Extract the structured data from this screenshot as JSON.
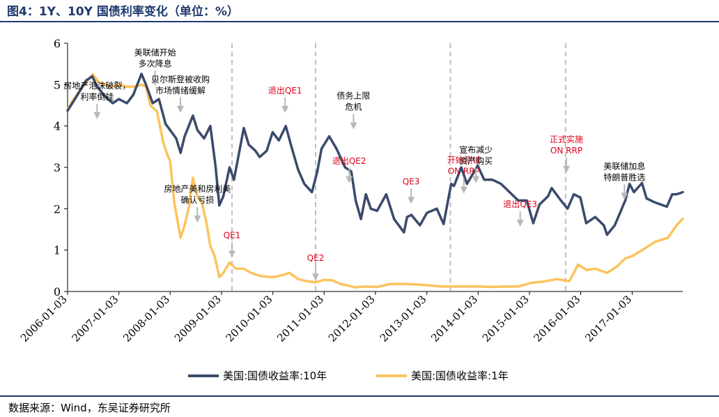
{
  "title": "图4：1Y、10Y 国债利率变化（单位：%）",
  "source": "数据来源：Wind，东吴证券研究所",
  "colors": {
    "series_10y": "#3a4a6b",
    "series_1y": "#fbc35d",
    "accent": "#1f3a6e",
    "annot_red": "#e0001b",
    "annot_black": "#000000",
    "arrow": "#b7b7b7",
    "vline": "#bfbfbf"
  },
  "chart_data": {
    "type": "line",
    "title": "",
    "xlabel": "",
    "ylabel": "",
    "ylim": [
      0,
      6
    ],
    "yticks": [
      "0",
      "1",
      "2",
      "3",
      "4",
      "5",
      "6"
    ],
    "xticks": [
      "2006-01-03",
      "2007-01-03",
      "2008-01-03",
      "2009-01-03",
      "2010-01-03",
      "2011-01-03",
      "2012-01-03",
      "2013-01-03",
      "2014-01-03",
      "2015-01-03",
      "2016-01-03",
      "2017-01-03"
    ],
    "xlim": [
      "2006-01-03",
      "2017-12-29"
    ],
    "grid": false,
    "legend": "bottom",
    "series": [
      {
        "name": "美国:国债收益率:10年",
        "points": [
          [
            "2006-01-03",
            4.37
          ],
          [
            "2006-02-15",
            4.6
          ],
          [
            "2006-04-01",
            4.85
          ],
          [
            "2006-05-15",
            5.1
          ],
          [
            "2006-06-28",
            5.2
          ],
          [
            "2006-08-01",
            4.95
          ],
          [
            "2006-10-01",
            4.7
          ],
          [
            "2006-11-20",
            4.55
          ],
          [
            "2007-01-03",
            4.65
          ],
          [
            "2007-03-01",
            4.55
          ],
          [
            "2007-04-15",
            4.75
          ],
          [
            "2007-06-13",
            5.26
          ],
          [
            "2007-07-15",
            5.0
          ],
          [
            "2007-09-01",
            4.55
          ],
          [
            "2007-10-15",
            4.65
          ],
          [
            "2007-12-01",
            4.05
          ],
          [
            "2008-01-03",
            3.9
          ],
          [
            "2008-02-15",
            3.7
          ],
          [
            "2008-03-17",
            3.35
          ],
          [
            "2008-04-15",
            3.75
          ],
          [
            "2008-06-13",
            4.25
          ],
          [
            "2008-07-15",
            3.9
          ],
          [
            "2008-09-01",
            3.7
          ],
          [
            "2008-10-15",
            4.0
          ],
          [
            "2008-11-20",
            3.05
          ],
          [
            "2008-12-18",
            2.08
          ],
          [
            "2009-01-15",
            2.3
          ],
          [
            "2009-03-01",
            3.0
          ],
          [
            "2009-04-01",
            2.7
          ],
          [
            "2009-06-10",
            3.95
          ],
          [
            "2009-07-15",
            3.55
          ],
          [
            "2009-09-01",
            3.4
          ],
          [
            "2009-10-01",
            3.25
          ],
          [
            "2009-11-20",
            3.4
          ],
          [
            "2010-01-01",
            3.85
          ],
          [
            "2010-02-15",
            3.65
          ],
          [
            "2010-04-05",
            4.0
          ],
          [
            "2010-05-15",
            3.5
          ],
          [
            "2010-07-01",
            2.95
          ],
          [
            "2010-08-15",
            2.6
          ],
          [
            "2010-10-08",
            2.4
          ],
          [
            "2010-11-15",
            2.9
          ],
          [
            "2010-12-15",
            3.45
          ],
          [
            "2011-02-08",
            3.75
          ],
          [
            "2011-04-01",
            3.45
          ],
          [
            "2011-06-01",
            3.0
          ],
          [
            "2011-07-15",
            2.9
          ],
          [
            "2011-08-15",
            2.2
          ],
          [
            "2011-09-22",
            1.75
          ],
          [
            "2011-10-27",
            2.35
          ],
          [
            "2011-12-01",
            2.0
          ],
          [
            "2012-01-15",
            1.95
          ],
          [
            "2012-03-20",
            2.35
          ],
          [
            "2012-05-15",
            1.75
          ],
          [
            "2012-07-24",
            1.43
          ],
          [
            "2012-08-15",
            1.8
          ],
          [
            "2012-09-15",
            1.85
          ],
          [
            "2012-11-15",
            1.6
          ],
          [
            "2013-01-03",
            1.9
          ],
          [
            "2013-03-15",
            2.0
          ],
          [
            "2013-05-02",
            1.63
          ],
          [
            "2013-06-25",
            2.6
          ],
          [
            "2013-07-15",
            2.55
          ],
          [
            "2013-09-05",
            3.0
          ],
          [
            "2013-10-15",
            2.6
          ],
          [
            "2013-12-31",
            3.04
          ],
          [
            "2014-02-15",
            2.7
          ],
          [
            "2014-04-15",
            2.7
          ],
          [
            "2014-06-15",
            2.6
          ],
          [
            "2014-08-15",
            2.4
          ],
          [
            "2014-10-15",
            2.2
          ],
          [
            "2014-12-15",
            2.2
          ],
          [
            "2015-01-30",
            1.65
          ],
          [
            "2015-03-15",
            2.1
          ],
          [
            "2015-05-15",
            2.3
          ],
          [
            "2015-06-10",
            2.5
          ],
          [
            "2015-08-15",
            2.2
          ],
          [
            "2015-10-01",
            2.0
          ],
          [
            "2015-11-15",
            2.35
          ],
          [
            "2015-12-31",
            2.27
          ],
          [
            "2016-02-11",
            1.65
          ],
          [
            "2016-04-15",
            1.8
          ],
          [
            "2016-06-15",
            1.6
          ],
          [
            "2016-07-08",
            1.37
          ],
          [
            "2016-09-01",
            1.6
          ],
          [
            "2016-11-15",
            2.2
          ],
          [
            "2016-12-15",
            2.6
          ],
          [
            "2017-01-15",
            2.4
          ],
          [
            "2017-03-14",
            2.62
          ],
          [
            "2017-04-15",
            2.25
          ],
          [
            "2017-06-15",
            2.15
          ],
          [
            "2017-09-07",
            2.05
          ],
          [
            "2017-10-15",
            2.35
          ],
          [
            "2017-11-15",
            2.35
          ],
          [
            "2017-12-29",
            2.4
          ]
        ]
      },
      {
        "name": "美国:国债收益率:1年",
        "points": [
          [
            "2006-01-03",
            4.4
          ],
          [
            "2006-02-15",
            4.65
          ],
          [
            "2006-04-01",
            4.85
          ],
          [
            "2006-05-15",
            5.05
          ],
          [
            "2006-07-01",
            5.25
          ],
          [
            "2006-08-15",
            5.05
          ],
          [
            "2006-10-01",
            5.0
          ],
          [
            "2006-11-15",
            4.95
          ],
          [
            "2007-01-03",
            5.0
          ],
          [
            "2007-03-01",
            4.95
          ],
          [
            "2007-05-01",
            4.95
          ],
          [
            "2007-06-15",
            5.0
          ],
          [
            "2007-07-15",
            4.95
          ],
          [
            "2007-08-15",
            4.5
          ],
          [
            "2007-10-01",
            4.35
          ],
          [
            "2007-11-15",
            3.6
          ],
          [
            "2007-12-15",
            3.3
          ],
          [
            "2008-01-03",
            3.15
          ],
          [
            "2008-02-01",
            2.15
          ],
          [
            "2008-03-17",
            1.3
          ],
          [
            "2008-04-15",
            1.6
          ],
          [
            "2008-05-15",
            2.05
          ],
          [
            "2008-06-13",
            2.75
          ],
          [
            "2008-07-15",
            2.3
          ],
          [
            "2008-08-15",
            2.15
          ],
          [
            "2008-09-15",
            1.7
          ],
          [
            "2008-10-15",
            1.1
          ],
          [
            "2008-11-15",
            0.85
          ],
          [
            "2008-12-18",
            0.35
          ],
          [
            "2009-01-15",
            0.45
          ],
          [
            "2009-03-01",
            0.7
          ],
          [
            "2009-04-15",
            0.55
          ],
          [
            "2009-06-10",
            0.55
          ],
          [
            "2009-08-01",
            0.45
          ],
          [
            "2009-10-01",
            0.38
          ],
          [
            "2009-12-01",
            0.35
          ],
          [
            "2010-01-15",
            0.35
          ],
          [
            "2010-03-15",
            0.4
          ],
          [
            "2010-05-01",
            0.45
          ],
          [
            "2010-07-01",
            0.3
          ],
          [
            "2010-09-01",
            0.25
          ],
          [
            "2010-11-01",
            0.22
          ],
          [
            "2011-01-01",
            0.28
          ],
          [
            "2011-03-01",
            0.27
          ],
          [
            "2011-05-01",
            0.18
          ],
          [
            "2011-08-15",
            0.1
          ],
          [
            "2011-10-15",
            0.12
          ],
          [
            "2012-01-15",
            0.11
          ],
          [
            "2012-04-15",
            0.18
          ],
          [
            "2012-07-15",
            0.18
          ],
          [
            "2012-10-15",
            0.17
          ],
          [
            "2013-01-15",
            0.15
          ],
          [
            "2013-04-15",
            0.12
          ],
          [
            "2013-07-15",
            0.12
          ],
          [
            "2013-10-15",
            0.12
          ],
          [
            "2014-01-15",
            0.12
          ],
          [
            "2014-04-15",
            0.11
          ],
          [
            "2014-07-15",
            0.12
          ],
          [
            "2014-10-15",
            0.12
          ],
          [
            "2015-01-15",
            0.21
          ],
          [
            "2015-04-15",
            0.24
          ],
          [
            "2015-07-15",
            0.3
          ],
          [
            "2015-10-15",
            0.25
          ],
          [
            "2015-12-15",
            0.65
          ],
          [
            "2016-02-15",
            0.52
          ],
          [
            "2016-04-15",
            0.55
          ],
          [
            "2016-07-08",
            0.45
          ],
          [
            "2016-09-15",
            0.6
          ],
          [
            "2016-11-15",
            0.8
          ],
          [
            "2016-12-31",
            0.85
          ],
          [
            "2017-03-15",
            1.0
          ],
          [
            "2017-06-15",
            1.2
          ],
          [
            "2017-09-15",
            1.3
          ],
          [
            "2017-11-15",
            1.6
          ],
          [
            "2017-12-29",
            1.76
          ]
        ]
      }
    ],
    "vlines": [
      "2009-03-18",
      "2010-11-03",
      "2013-06-19",
      "2015-09-17"
    ],
    "annotations": [
      {
        "lines": [
          "美联储开始",
          "多次降息"
        ],
        "color": "black",
        "date": "2007-09-18",
        "value": 5.0
      },
      {
        "lines": [
          "贝尔斯登被收购",
          "市场情绪缓解"
        ],
        "color": "black",
        "date": "2008-03-16",
        "value": 4.35
      },
      {
        "lines": [
          "房地产泡沫破裂，",
          "利率倒挂"
        ],
        "color": "black",
        "date": "2006-08-01",
        "value": 4.2
      },
      {
        "lines": [
          "退出QE1"
        ],
        "color": "red",
        "date": "2010-03-31",
        "value": 4.35
      },
      {
        "lines": [
          "债务上限",
          "危机"
        ],
        "color": "black",
        "date": "2011-07-31",
        "value": 3.95
      },
      {
        "lines": [
          "QE1"
        ],
        "color": "red",
        "date": "2009-03-18",
        "value": 0.85
      },
      {
        "lines": [
          "QE2"
        ],
        "color": "red",
        "date": "2010-11-03",
        "value": 0.3
      },
      {
        "lines": [
          "退出QE2"
        ],
        "color": "red",
        "date": "2011-06-30",
        "value": 2.65
      },
      {
        "lines": [
          "QE3"
        ],
        "color": "red",
        "date": "2012-09-13",
        "value": 2.15
      },
      {
        "lines": [
          "开始测试",
          "ON RRP"
        ],
        "color": "red",
        "date": "2013-09-23",
        "value": 2.4
      },
      {
        "lines": [
          "宣布减少",
          "资产购买"
        ],
        "color": "black",
        "date": "2013-12-18",
        "value": 2.65
      },
      {
        "lines": [
          "退出QE3"
        ],
        "color": "red",
        "date": "2014-10-29",
        "value": 1.6
      },
      {
        "lines": [
          "正式实施",
          "ON RRP"
        ],
        "color": "red",
        "date": "2015-09-23",
        "value": 2.9
      },
      {
        "lines": [
          "房地产美和房利美",
          "确认亏损"
        ],
        "color": "black",
        "date": "2008-07-15",
        "value": 1.7
      },
      {
        "lines": [
          "美联储加息",
          "特朗普胜选"
        ],
        "color": "black",
        "date": "2016-11-09",
        "value": 2.25
      }
    ]
  }
}
